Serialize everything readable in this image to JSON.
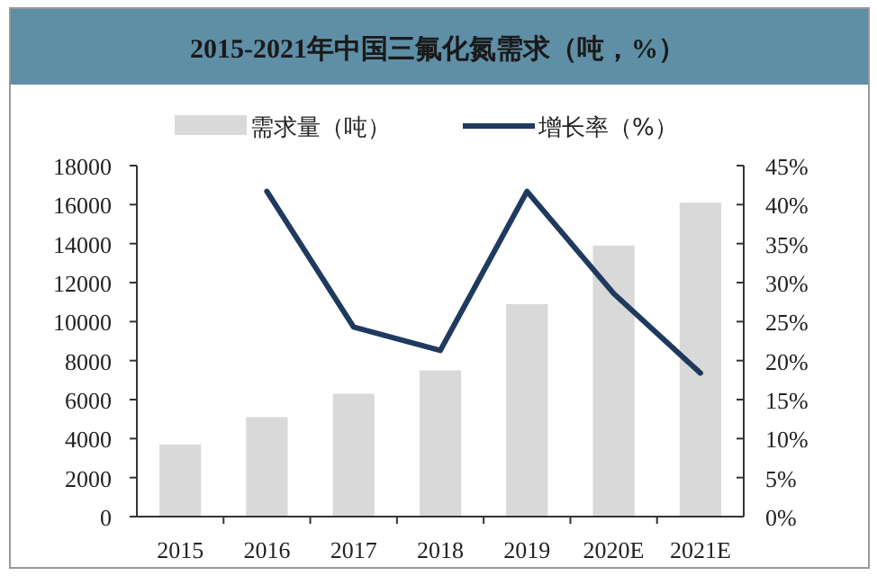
{
  "chart_data": {
    "type": "bar",
    "title": "2015-2021年中国三氟化氮需求（吨，%）",
    "categories": [
      "2015",
      "2016",
      "2017",
      "2018",
      "2019",
      "2020E",
      "2021E"
    ],
    "series": [
      {
        "name": "需求量（吨）",
        "color": "#d9d9d9",
        "values": [
          3700,
          5100,
          6300,
          7500,
          10900,
          13900,
          16100
        ]
      },
      {
        "name": "增长率（%）",
        "type": "line",
        "axis": "y2",
        "color": "#1f3a5f",
        "values": [
          null,
          41.7,
          24.3,
          21.3,
          41.7,
          28.6,
          18.4
        ]
      }
    ],
    "ylim": [
      0,
      18000
    ],
    "yticks": [
      0,
      2000,
      4000,
      6000,
      8000,
      10000,
      12000,
      14000,
      16000,
      18000
    ],
    "y2lim": [
      0,
      45
    ],
    "y2ticks": [
      {
        "value": 0,
        "label": "0%"
      },
      {
        "value": 5,
        "label": "5%"
      },
      {
        "value": 10,
        "label": "10%"
      },
      {
        "value": 15,
        "label": "15%"
      },
      {
        "value": 20,
        "label": "20%"
      },
      {
        "value": 25,
        "label": "25%"
      },
      {
        "value": 30,
        "label": "30%"
      },
      {
        "value": 35,
        "label": "35%"
      },
      {
        "value": 40,
        "label": "40%"
      },
      {
        "value": 45,
        "label": "45%"
      }
    ],
    "legend": "top",
    "grid": false
  }
}
